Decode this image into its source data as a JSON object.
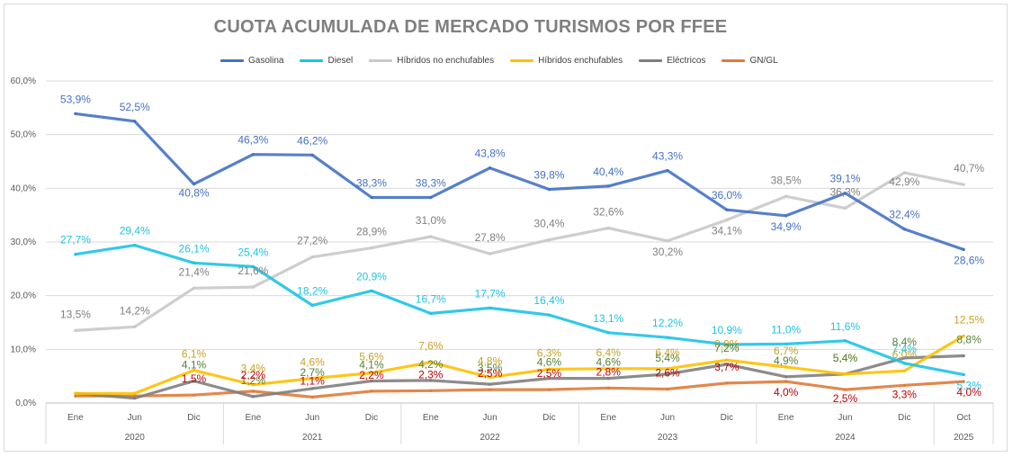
{
  "chart_data": {
    "type": "line",
    "title": "CUOTA ACUMULADA DE MERCADO TURISMOS POR FFEE",
    "ylim": [
      0,
      60
    ],
    "yticks": [
      "0,0%",
      "10,0%",
      "20,0%",
      "30,0%",
      "40,0%",
      "50,0%",
      "60,0%"
    ],
    "grid": true,
    "legend_position": "top",
    "categories": [
      "Ene",
      "Jun",
      "Dic",
      "Ene",
      "Jun",
      "Dic",
      "Ene",
      "Jun",
      "Dic",
      "Ene",
      "Jun",
      "Dic",
      "Ene",
      "Jun",
      "Dic",
      "Oct"
    ],
    "years": [
      {
        "label": "2020",
        "start": 0,
        "end": 2
      },
      {
        "label": "2021",
        "start": 3,
        "end": 5
      },
      {
        "label": "2022",
        "start": 6,
        "end": 8
      },
      {
        "label": "2023",
        "start": 9,
        "end": 11
      },
      {
        "label": "2024",
        "start": 12,
        "end": 14
      },
      {
        "label": "2025",
        "start": 15,
        "end": 15
      }
    ],
    "series": [
      {
        "name": "Gasolina",
        "color": "#4472c4",
        "values": [
          53.9,
          52.5,
          40.8,
          46.3,
          46.2,
          38.3,
          38.3,
          43.8,
          39.8,
          40.4,
          43.3,
          36.0,
          34.9,
          39.1,
          32.4,
          28.6
        ],
        "labels": [
          "53,9%",
          "52,5%",
          "40,8%",
          "46,3%",
          "46,2%",
          "38,3%",
          "38,3%",
          "43,8%",
          "39,8%",
          "40,4%",
          "43,3%",
          "36,0%",
          "34,9%",
          "39,1%",
          "32,4%",
          "28,6%"
        ]
      },
      {
        "name": "Diesel",
        "color": "#1ec3e6",
        "values": [
          27.7,
          29.4,
          26.1,
          25.4,
          18.2,
          20.9,
          16.7,
          17.7,
          16.4,
          13.1,
          12.2,
          10.9,
          11.0,
          11.6,
          7.4,
          5.3
        ],
        "labels": [
          "27,7%",
          "29,4%",
          "26,1%",
          "25,4%",
          "18,2%",
          "20,9%",
          "16,7%",
          "17,7%",
          "16,4%",
          "13,1%",
          "12,2%",
          "10,9%",
          "11,0%",
          "11,6%",
          "7,4%",
          "5,3%"
        ]
      },
      {
        "name": "Híbridos no enchufables",
        "color": "#c9c9c9",
        "values": [
          13.5,
          14.2,
          21.4,
          21.6,
          27.2,
          28.9,
          31.0,
          27.8,
          30.4,
          32.6,
          30.2,
          34.1,
          38.5,
          36.3,
          42.9,
          40.7
        ],
        "labels": [
          "13,5%",
          "14,2%",
          "21,4%",
          "21,6%",
          "27,2%",
          "28,9%",
          "31,0%",
          "27,8%",
          "30,4%",
          "32,6%",
          "30,2%",
          "34,1%",
          "38,5%",
          "36,3%",
          "42,9%",
          "40,7%"
        ]
      },
      {
        "name": "Híbridos enchufables",
        "color": "#ffc000",
        "values": [
          1.8,
          1.8,
          6.1,
          3.4,
          4.6,
          5.6,
          7.6,
          4.8,
          6.3,
          6.4,
          6.4,
          8.0,
          6.7,
          5.4,
          6.0,
          12.5
        ],
        "labels": [
          "",
          "",
          "6,1%",
          "3,4%",
          "4,6%",
          "5,6%",
          "7,6%",
          "4,8%",
          "6,3%",
          "6,4%",
          "6,4%",
          "8,0%",
          "6,7%",
          "5,4%",
          "6,0%",
          "12,5%"
        ]
      },
      {
        "name": "Eléctricos",
        "color": "#7f7f7f",
        "values": [
          1.8,
          0.9,
          4.1,
          1.2,
          2.7,
          4.1,
          4.2,
          3.5,
          4.6,
          4.6,
          5.4,
          7.2,
          4.9,
          5.4,
          8.4,
          8.8
        ],
        "labels": [
          "",
          "",
          "4,1%",
          "1,2%",
          "2,7%",
          "4,1%",
          "4,2%",
          "3,5%",
          "4,6%",
          "4,6%",
          "5,4%",
          "7,2%",
          "4,9%",
          "5,4%",
          "8,4%",
          "8,8%"
        ]
      },
      {
        "name": "GN/GL",
        "color": "#e07b39",
        "values": [
          1.3,
          1.3,
          1.5,
          2.2,
          1.1,
          2.2,
          2.3,
          2.5,
          2.5,
          2.8,
          2.6,
          3.7,
          4.0,
          2.5,
          3.3,
          4.0
        ],
        "labels": [
          "",
          "",
          "1,5%",
          "2,2%",
          "1,1%",
          "2,2%",
          "2,3%",
          "2,5%",
          "2,5%",
          "2,8%",
          "2,6%",
          "3,7%",
          "4,0%",
          "2,5%",
          "3,3%",
          "4,0%"
        ]
      }
    ],
    "label_colors": {
      "Gasolina": "#4472c4",
      "Diesel": "#1ec3e6",
      "Híbridos no enchufables": "#808080",
      "Híbridos enchufables": "#c9a227",
      "Eléctricos": "#548235",
      "GN/GL": "#c00000"
    }
  }
}
